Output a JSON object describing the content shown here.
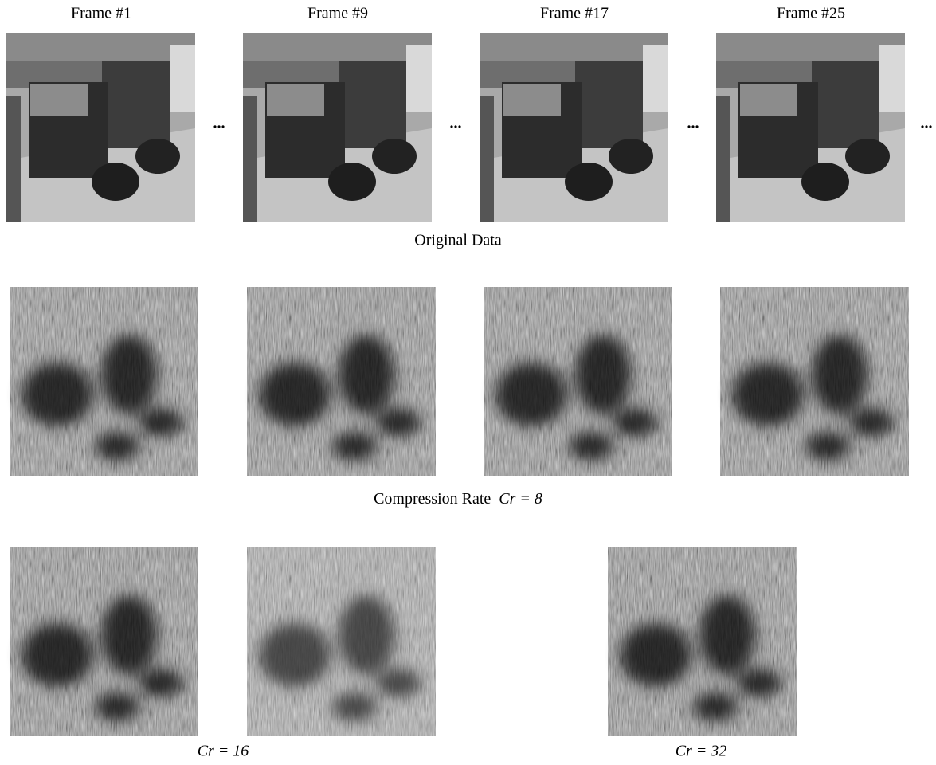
{
  "header": {
    "frames": [
      "Frame #1",
      "Frame #9",
      "Frame #17",
      "Frame #25"
    ],
    "ellipsis": "..."
  },
  "captions": {
    "original": "Original Data",
    "cr8": {
      "prefix": "Compression Rate",
      "math": "Cr = 8"
    },
    "cr16": "Cr = 16",
    "cr32": "Cr = 32"
  }
}
